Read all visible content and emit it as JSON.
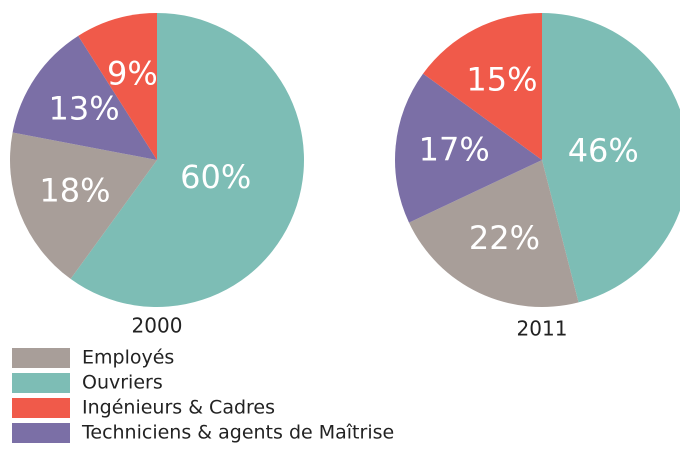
{
  "chart_data": [
    {
      "type": "pie",
      "title": "2000",
      "values": [
        18,
        60,
        9,
        13
      ],
      "value_labels": [
        "18%",
        "60%",
        "9%",
        "13%"
      ]
    },
    {
      "type": "pie",
      "title": "2011",
      "values": [
        22,
        46,
        15,
        17
      ],
      "value_labels": [
        "22%",
        "46%",
        "15%",
        "17%"
      ]
    }
  ],
  "legend": {
    "labels": [
      "Employés",
      "Ouvriers",
      "Ingénieurs & Cadres",
      "Techniciens & agents de Maîtrise"
    ],
    "colors": [
      "#a89e99",
      "#7dbdb5",
      "#f05a4a",
      "#7b6fa6"
    ]
  }
}
